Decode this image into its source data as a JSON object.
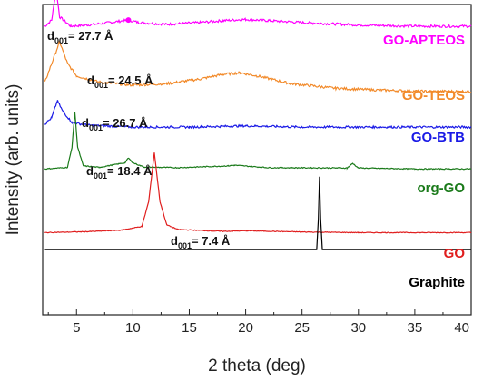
{
  "chart_data": {
    "type": "line",
    "xlabel": "2 theta (deg)",
    "ylabel": "Intensity (arb. units)",
    "xlim": [
      2,
      40
    ],
    "x_ticks": [
      "5",
      "10",
      "15",
      "20",
      "25",
      "30",
      "35",
      "40"
    ],
    "grid": false,
    "series": [
      {
        "name": "GO-APTEOS",
        "color": "#ff00ff",
        "annotation": {
          "prefix": "d",
          "sub": "001",
          "value": "= 27.7 Å"
        },
        "baseline": 0.93,
        "points": [
          [
            2.2,
            0.0
          ],
          [
            2.8,
            0.02
          ],
          [
            3.2,
            0.12
          ],
          [
            3.5,
            0.03
          ],
          [
            4.5,
            0.0
          ],
          [
            6,
            0.004
          ],
          [
            8,
            0.012
          ],
          [
            9.6,
            0.02
          ],
          [
            10.5,
            0.012
          ],
          [
            13,
            0.006
          ],
          [
            16,
            0.012
          ],
          [
            18,
            0.018
          ],
          [
            20,
            0.022
          ],
          [
            22,
            0.018
          ],
          [
            26,
            0.01
          ],
          [
            30,
            0.004
          ],
          [
            35,
            0.0
          ],
          [
            40,
            0.0
          ]
        ]
      },
      {
        "name": "GO-TEOS",
        "color": "#f28a2a",
        "annotation": {
          "prefix": "d",
          "sub": "001",
          "value": "= 24.5 Å"
        },
        "baseline": 0.72,
        "points": [
          [
            2.2,
            0.03
          ],
          [
            2.8,
            0.09
          ],
          [
            3.5,
            0.16
          ],
          [
            4.2,
            0.09
          ],
          [
            5,
            0.05
          ],
          [
            7,
            0.03
          ],
          [
            10,
            0.02
          ],
          [
            13,
            0.025
          ],
          [
            16,
            0.04
          ],
          [
            18,
            0.055
          ],
          [
            19.5,
            0.06
          ],
          [
            21,
            0.05
          ],
          [
            24,
            0.025
          ],
          [
            28,
            0.01
          ],
          [
            32,
            0.004
          ],
          [
            36,
            0.0
          ],
          [
            40,
            0.0
          ]
        ]
      },
      {
        "name": "GO-BTB",
        "color": "#1a1ae6",
        "annotation": {
          "prefix": "d",
          "sub": "001",
          "value": "= 26.7 Å"
        },
        "baseline": 0.605,
        "points": [
          [
            2.2,
            0.01
          ],
          [
            2.8,
            0.03
          ],
          [
            3.3,
            0.085
          ],
          [
            3.8,
            0.05
          ],
          [
            4.6,
            0.015
          ],
          [
            6,
            0.006
          ],
          [
            10,
            0.0
          ],
          [
            15,
            0.0
          ],
          [
            20,
            0.004
          ],
          [
            25,
            0.0
          ],
          [
            30,
            0.0
          ],
          [
            40,
            0.0
          ]
        ]
      },
      {
        "name": "org-GO",
        "color": "#1a7a1a",
        "annotation": {
          "prefix": "d",
          "sub": "001",
          "value": "= 18.4 Å"
        },
        "baseline": 0.47,
        "points": [
          [
            2.2,
            0.0
          ],
          [
            4.2,
            0.005
          ],
          [
            4.6,
            0.07
          ],
          [
            4.85,
            0.185
          ],
          [
            5.1,
            0.07
          ],
          [
            5.6,
            0.01
          ],
          [
            7,
            0.005
          ],
          [
            9.3,
            0.02
          ],
          [
            9.6,
            0.035
          ],
          [
            10,
            0.02
          ],
          [
            11,
            0.006
          ],
          [
            14,
            0.004
          ],
          [
            18.5,
            0.01
          ],
          [
            19,
            0.012
          ],
          [
            22,
            0.004
          ],
          [
            29,
            0.003
          ],
          [
            29.5,
            0.018
          ],
          [
            30,
            0.003
          ],
          [
            35,
            0.0
          ],
          [
            40,
            0.0
          ]
        ]
      },
      {
        "name": "GO",
        "color": "#e01e1e",
        "annotation": {
          "prefix": "d",
          "sub": "001",
          "value": "= 7.4 Å"
        },
        "baseline": 0.265,
        "points": [
          [
            2.2,
            0.0
          ],
          [
            6,
            0.003
          ],
          [
            9,
            0.008
          ],
          [
            10.8,
            0.02
          ],
          [
            11.4,
            0.1
          ],
          [
            11.9,
            0.258
          ],
          [
            12.4,
            0.1
          ],
          [
            13,
            0.025
          ],
          [
            14,
            0.01
          ],
          [
            18,
            0.004
          ],
          [
            20,
            0.006
          ],
          [
            25,
            0.002
          ],
          [
            30,
            0.0
          ],
          [
            40,
            0.0
          ]
        ]
      },
      {
        "name": "Graphite",
        "color": "#000000",
        "annotation": null,
        "baseline": 0.21,
        "points": [
          [
            2.2,
            0.0
          ],
          [
            26.3,
            0.0
          ],
          [
            26.45,
            0.1
          ],
          [
            26.55,
            0.235
          ],
          [
            26.65,
            0.1
          ],
          [
            26.8,
            0.0
          ],
          [
            40,
            0.0
          ]
        ]
      }
    ]
  }
}
